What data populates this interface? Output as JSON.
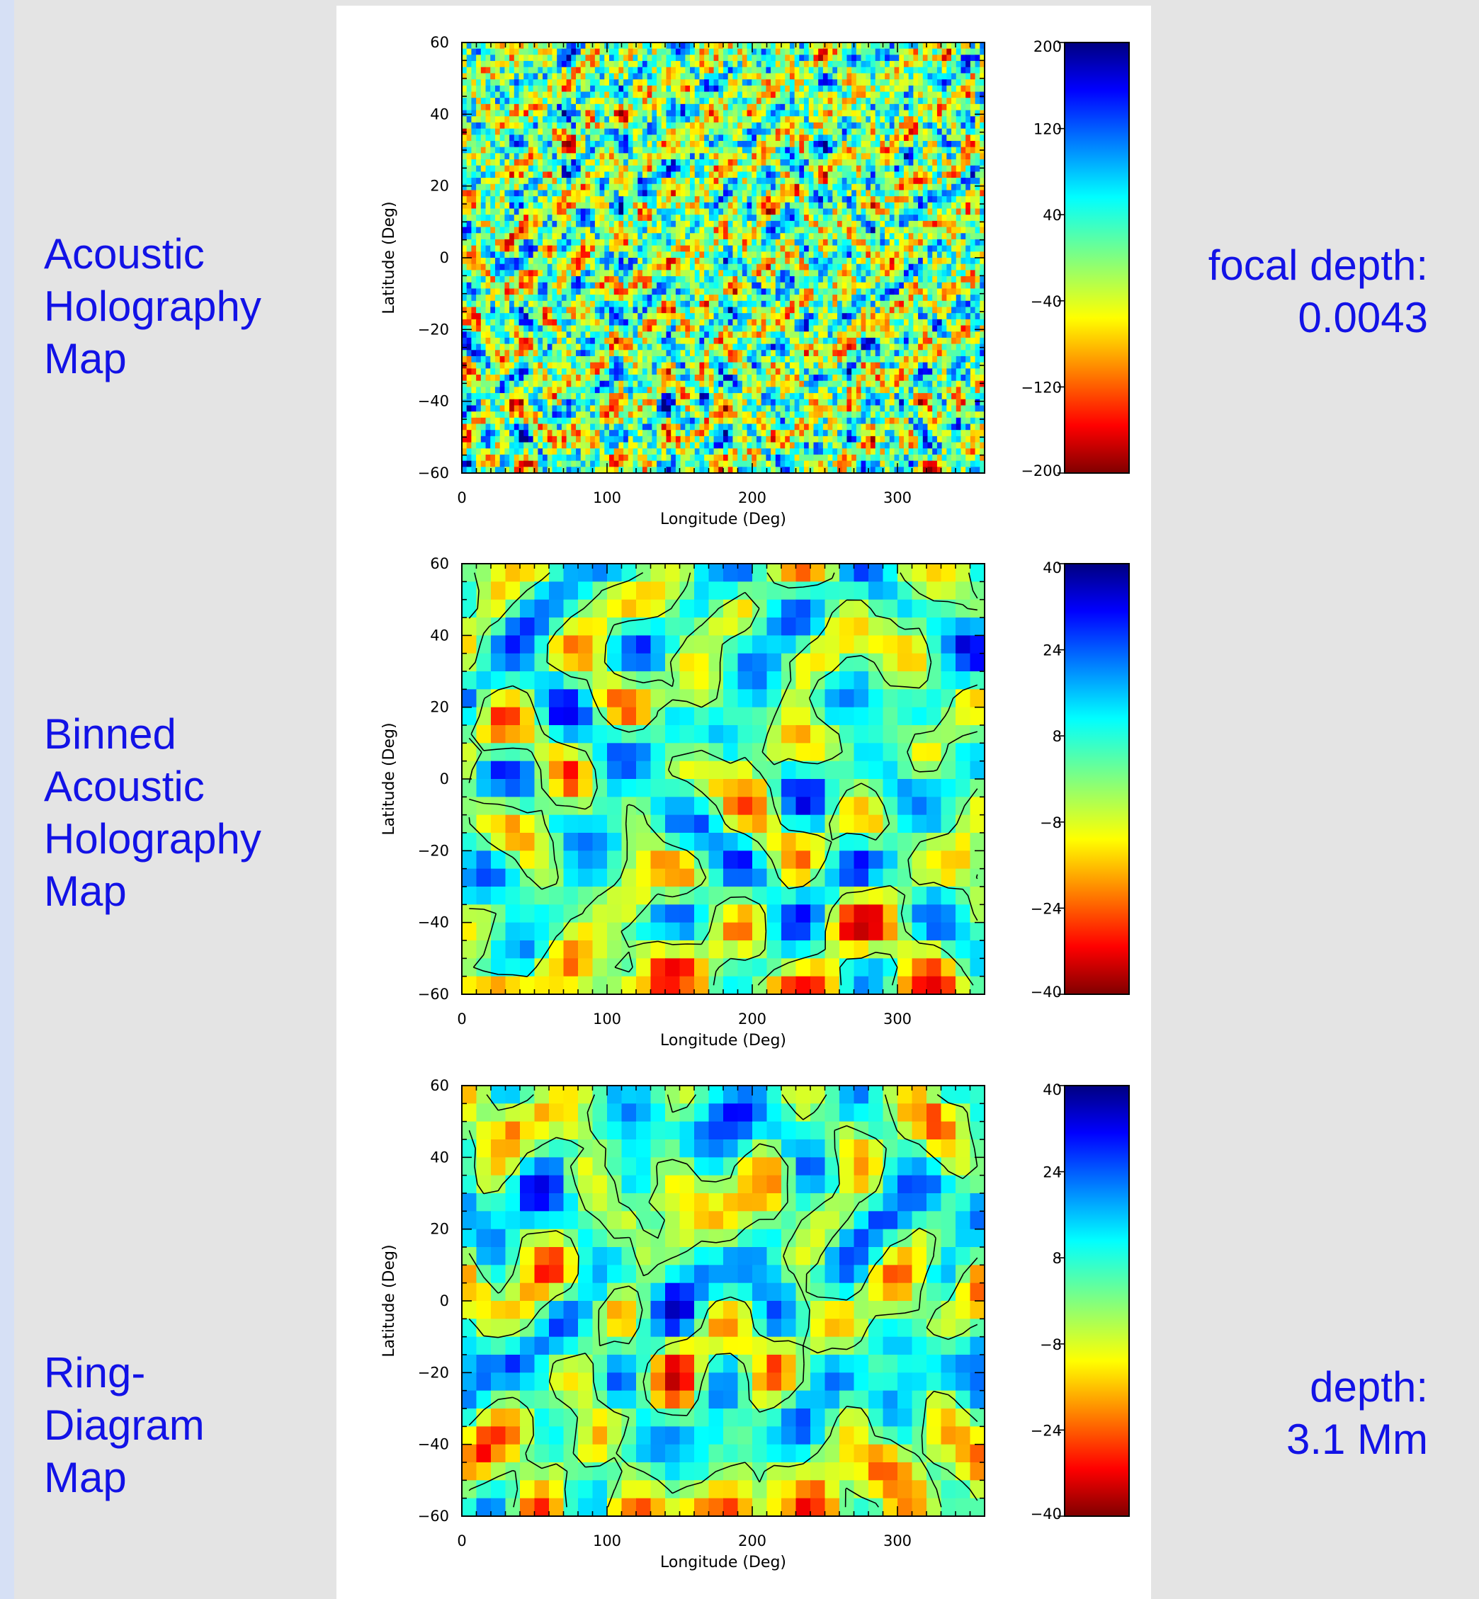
{
  "labels": {
    "panel1": [
      "Acoustic",
      "Holography",
      "Map"
    ],
    "panel2": [
      "Binned",
      "Acoustic",
      "Holography",
      "Map"
    ],
    "panel3": [
      "Ring-",
      "Diagram",
      "Map"
    ],
    "focal_depth": [
      "focal depth:",
      "0.0043"
    ],
    "depth": [
      "depth:",
      "3.1 Mm"
    ]
  },
  "colors": {
    "colormap": "jet",
    "label_text": "#1212e6",
    "background": "#e4e4e4",
    "panel": "#ffffff"
  },
  "chart_data": [
    {
      "type": "heatmap",
      "title": "",
      "xlabel": "Longitude (Deg)",
      "ylabel": "Latitude (Deg)",
      "xlim": [
        0,
        360
      ],
      "ylim": [
        -60,
        60
      ],
      "x_ticks": [
        "0",
        "100",
        "200",
        "300"
      ],
      "y_ticks": [
        "60",
        "40",
        "20",
        "0",
        "−20",
        "−40",
        "−60"
      ],
      "colorbar_range": [
        -200,
        200
      ],
      "colorbar_ticks": [
        "200",
        "120",
        "40",
        "−40",
        "−120",
        "−200"
      ],
      "contours": false,
      "resolution": "fine"
    },
    {
      "type": "heatmap",
      "title": "",
      "xlabel": "Longitude (Deg)",
      "ylabel": "Latitude (Deg)",
      "xlim": [
        0,
        360
      ],
      "ylim": [
        -60,
        60
      ],
      "x_ticks": [
        "0",
        "100",
        "200",
        "300"
      ],
      "y_ticks": [
        "60",
        "40",
        "20",
        "0",
        "−20",
        "−40",
        "−60"
      ],
      "colorbar_range": [
        -40,
        40
      ],
      "colorbar_ticks": [
        "40",
        "24",
        "8",
        "−8",
        "−24",
        "−40"
      ],
      "contours": true,
      "resolution": "binned"
    },
    {
      "type": "heatmap",
      "title": "",
      "xlabel": "Longitude (Deg)",
      "ylabel": "Latitude (Deg)",
      "xlim": [
        0,
        360
      ],
      "ylim": [
        -60,
        60
      ],
      "x_ticks": [
        "0",
        "100",
        "200",
        "300"
      ],
      "y_ticks": [
        "60",
        "40",
        "20",
        "0",
        "−20",
        "−40",
        "−60"
      ],
      "colorbar_range": [
        -40,
        40
      ],
      "colorbar_ticks": [
        "40",
        "24",
        "8",
        "−8",
        "−24",
        "−40"
      ],
      "contours": true,
      "resolution": "binned"
    }
  ]
}
